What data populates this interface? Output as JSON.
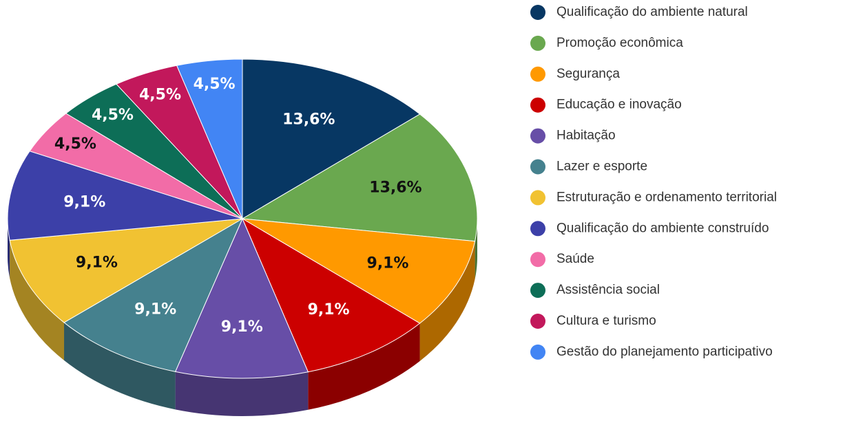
{
  "chart_data": {
    "type": "pie",
    "categories": [
      "Qualificação do ambiente natural",
      "Promoção econômica",
      "Segurança",
      "Educação e inovação",
      "Habitação",
      "Lazer e esporte",
      "Estruturação e ordenamento territorial",
      "Qualificação do ambiente construído",
      "Saúde",
      "Assistência social",
      "Cultura e turismo",
      "Gestão do planejamento participativo"
    ],
    "values": [
      13.6,
      13.6,
      9.1,
      9.1,
      9.1,
      9.1,
      9.1,
      9.1,
      4.5,
      4.5,
      4.5,
      4.5
    ],
    "value_labels": [
      "13,6%",
      "13,6%",
      "9,1%",
      "9,1%",
      "9,1%",
      "9,1%",
      "9,1%",
      "9,1%",
      "4,5%",
      "4,5%",
      "4,5%",
      "4,5%"
    ],
    "colors": [
      "#073763",
      "#6aa84f",
      "#ff9900",
      "#cc0000",
      "#674ea7",
      "#45818e",
      "#f1c232",
      "#3c40a8",
      "#f26ca7",
      "#0d6e57",
      "#c2185b",
      "#4285f4"
    ],
    "legend": "right"
  }
}
